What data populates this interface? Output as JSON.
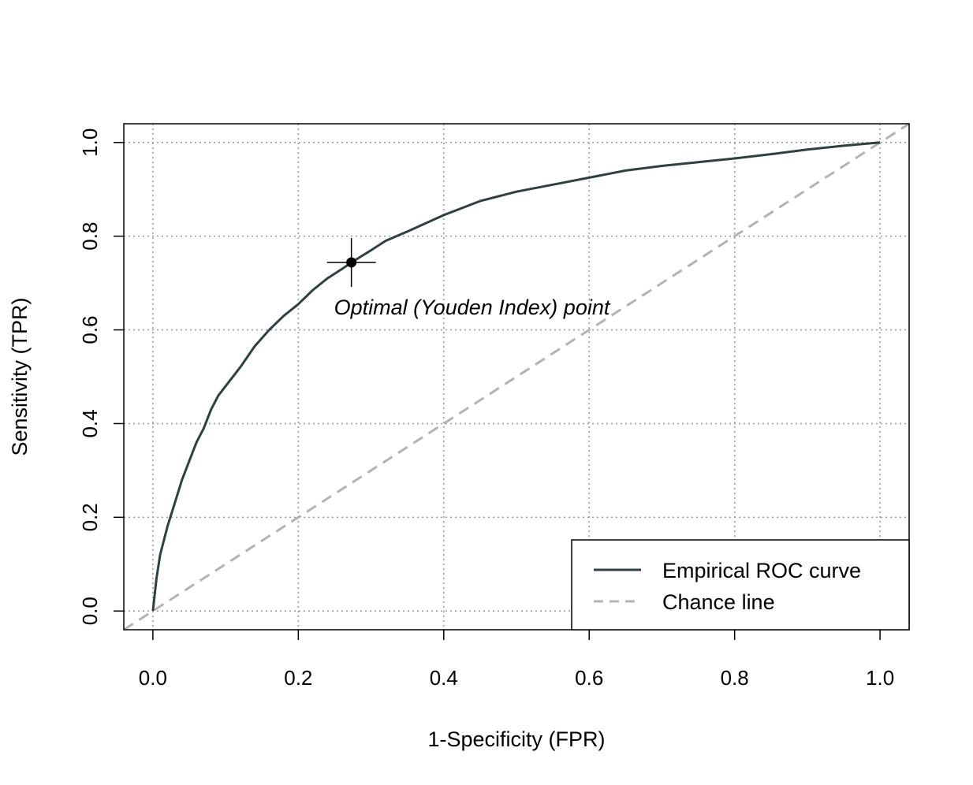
{
  "chart_data": {
    "type": "line",
    "xlabel": "1-Specificity (FPR)",
    "ylabel": "Sensitivity (TPR)",
    "xlim": [
      -0.04,
      1.04
    ],
    "ylim": [
      -0.04,
      1.04
    ],
    "xticks": [
      0.0,
      0.2,
      0.4,
      0.6,
      0.8,
      1.0
    ],
    "yticks": [
      0.0,
      0.2,
      0.4,
      0.6,
      0.8,
      1.0
    ],
    "tick_labels": [
      "0.0",
      "0.2",
      "0.4",
      "0.6",
      "0.8",
      "1.0"
    ],
    "grid": true,
    "legend_position": "bottom-right",
    "series": [
      {
        "name": "Empirical ROC curve",
        "style": "solid",
        "color": "#2f4040",
        "x": [
          0.0,
          0.005,
          0.01,
          0.015,
          0.02,
          0.03,
          0.04,
          0.05,
          0.06,
          0.07,
          0.08,
          0.09,
          0.1,
          0.12,
          0.14,
          0.16,
          0.18,
          0.2,
          0.22,
          0.24,
          0.26,
          0.273,
          0.3,
          0.32,
          0.35,
          0.4,
          0.45,
          0.5,
          0.55,
          0.6,
          0.65,
          0.7,
          0.75,
          0.8,
          0.85,
          0.9,
          0.95,
          1.0
        ],
        "y": [
          0.0,
          0.07,
          0.12,
          0.15,
          0.18,
          0.23,
          0.28,
          0.32,
          0.36,
          0.39,
          0.43,
          0.46,
          0.48,
          0.52,
          0.565,
          0.6,
          0.63,
          0.655,
          0.685,
          0.71,
          0.73,
          0.744,
          0.77,
          0.79,
          0.81,
          0.845,
          0.875,
          0.895,
          0.91,
          0.925,
          0.94,
          0.95,
          0.958,
          0.966,
          0.975,
          0.985,
          0.993,
          1.0
        ]
      },
      {
        "name": "Chance line",
        "style": "dashed",
        "color": "#b3b3b3",
        "x": [
          -0.04,
          1.04
        ],
        "y": [
          -0.04,
          1.04
        ]
      }
    ],
    "annotations": [
      {
        "text": "Optimal (Youden Index) point",
        "x": 0.273,
        "y": 0.744
      }
    ]
  }
}
